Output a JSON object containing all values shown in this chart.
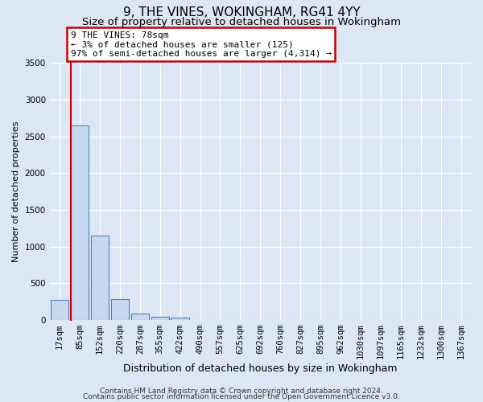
{
  "title": "9, THE VINES, WOKINGHAM, RG41 4YY",
  "subtitle": "Size of property relative to detached houses in Wokingham",
  "xlabel": "Distribution of detached houses by size in Wokingham",
  "ylabel": "Number of detached properties",
  "bar_labels": [
    "17sqm",
    "85sqm",
    "152sqm",
    "220sqm",
    "287sqm",
    "355sqm",
    "422sqm",
    "490sqm",
    "557sqm",
    "625sqm",
    "692sqm",
    "760sqm",
    "827sqm",
    "895sqm",
    "962sqm",
    "1030sqm",
    "1097sqm",
    "1165sqm",
    "1232sqm",
    "1300sqm",
    "1367sqm"
  ],
  "bar_heights": [
    270,
    2650,
    1145,
    280,
    90,
    40,
    30,
    0,
    0,
    0,
    0,
    0,
    0,
    0,
    0,
    0,
    0,
    0,
    0,
    0,
    0
  ],
  "bar_color": "#c6d9f0",
  "bar_edge_color": "#4f81bd",
  "ylim": [
    0,
    3500
  ],
  "yticks": [
    0,
    500,
    1000,
    1500,
    2000,
    2500,
    3000,
    3500
  ],
  "property_line_color": "#cc0000",
  "annotation_text": "9 THE VINES: 78sqm\n← 3% of detached houses are smaller (125)\n97% of semi-detached houses are larger (4,314) →",
  "annotation_box_color": "#ffffff",
  "annotation_box_edge_color": "#cc0000",
  "footer_line1": "Contains HM Land Registry data © Crown copyright and database right 2024.",
  "footer_line2": "Contains public sector information licensed under the Open Government Licence v3.0.",
  "background_color": "#dce6f5",
  "grid_color": "#ffffff",
  "title_fontsize": 11,
  "subtitle_fontsize": 9.5,
  "xlabel_fontsize": 9,
  "ylabel_fontsize": 8,
  "tick_fontsize": 7.5,
  "footer_fontsize": 6.5
}
